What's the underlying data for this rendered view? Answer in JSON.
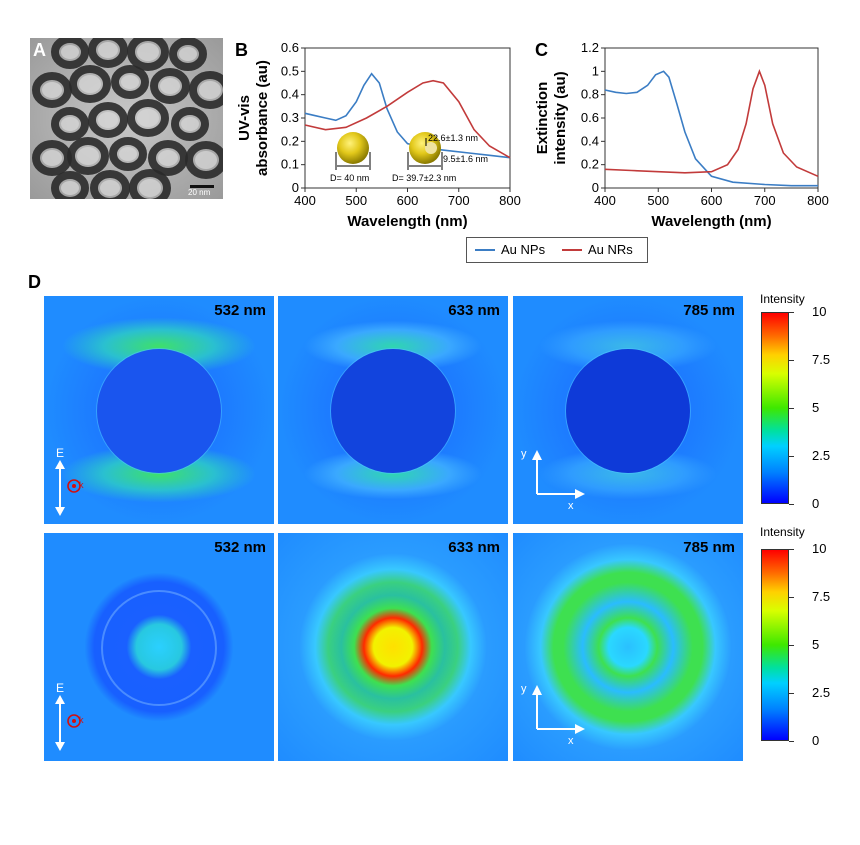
{
  "panels": {
    "a": "A",
    "b": "B",
    "c": "C",
    "d": "D"
  },
  "tem": {
    "scale_label": "20 nm"
  },
  "legend": {
    "series": [
      "Au NPs",
      "Au NRs"
    ],
    "colors": [
      "#3b7dc4",
      "#c23b3b"
    ]
  },
  "panel_b_insets": {
    "np_label": "D= 40 nm",
    "nr_label": "D= 39.7±2.3 nm",
    "nr_shell": "22.6±1.3 nm",
    "nr_thickness": "9.5±1.6 nm"
  },
  "colorbar": {
    "title": "Intensity",
    "ticks": [
      "10",
      "7.5",
      "5",
      "2.5",
      "0"
    ]
  },
  "field_maps": {
    "wavelengths": [
      "532 nm",
      "633 nm",
      "785 nm"
    ],
    "polarization": {
      "e_label": "E",
      "k_label": "k"
    },
    "axes": {
      "x": "x",
      "y": "y"
    }
  },
  "chart_data": [
    {
      "type": "line",
      "panel": "B",
      "xlabel": "Wavelength (nm)",
      "ylabel": "UV-vis absorbance (au)",
      "xlim": [
        400,
        800
      ],
      "ylim": [
        0,
        0.6
      ],
      "xticks": [
        400,
        500,
        600,
        700,
        800
      ],
      "yticks": [
        0,
        0.1,
        0.2,
        0.3,
        0.4,
        0.5,
        0.6
      ],
      "series": [
        {
          "name": "Au NPs",
          "color": "#3b7dc4",
          "x": [
            400,
            420,
            440,
            460,
            480,
            500,
            515,
            530,
            545,
            560,
            580,
            600,
            640,
            680,
            720,
            760,
            800
          ],
          "y": [
            0.32,
            0.31,
            0.3,
            0.29,
            0.31,
            0.37,
            0.44,
            0.49,
            0.45,
            0.34,
            0.24,
            0.19,
            0.17,
            0.16,
            0.15,
            0.14,
            0.13
          ]
        },
        {
          "name": "Au NRs",
          "color": "#c23b3b",
          "x": [
            400,
            440,
            480,
            520,
            560,
            600,
            630,
            650,
            670,
            700,
            730,
            760,
            800
          ],
          "y": [
            0.27,
            0.25,
            0.26,
            0.3,
            0.35,
            0.41,
            0.45,
            0.46,
            0.45,
            0.37,
            0.25,
            0.18,
            0.13
          ]
        }
      ]
    },
    {
      "type": "line",
      "panel": "C",
      "xlabel": "Wavelength (nm)",
      "ylabel": "Extinction intensity (au)",
      "xlim": [
        400,
        800
      ],
      "ylim": [
        0,
        1.2
      ],
      "xticks": [
        400,
        500,
        600,
        700,
        800
      ],
      "yticks": [
        0,
        0.2,
        0.4,
        0.6,
        0.8,
        1,
        1.2
      ],
      "series": [
        {
          "name": "Au NPs",
          "color": "#3b7dc4",
          "x": [
            400,
            420,
            440,
            460,
            480,
            495,
            510,
            520,
            535,
            550,
            570,
            600,
            640,
            700,
            750,
            800
          ],
          "y": [
            0.84,
            0.82,
            0.81,
            0.82,
            0.88,
            0.97,
            1.0,
            0.95,
            0.72,
            0.48,
            0.25,
            0.1,
            0.05,
            0.03,
            0.02,
            0.02
          ]
        },
        {
          "name": "Au NRs",
          "color": "#c23b3b",
          "x": [
            400,
            450,
            500,
            550,
            600,
            630,
            650,
            665,
            678,
            690,
            700,
            715,
            735,
            760,
            800
          ],
          "y": [
            0.16,
            0.15,
            0.14,
            0.13,
            0.14,
            0.2,
            0.33,
            0.55,
            0.85,
            1.0,
            0.88,
            0.55,
            0.3,
            0.18,
            0.1
          ]
        }
      ]
    }
  ]
}
